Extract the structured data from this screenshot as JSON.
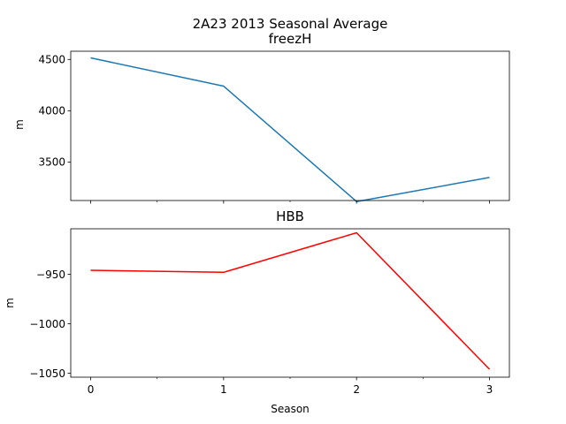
{
  "figure": {
    "title": "2A23 2013 Seasonal Average",
    "background": "#ffffff"
  },
  "chart_data": [
    {
      "type": "line",
      "title": "freezH",
      "xlabel": "",
      "ylabel": "m",
      "x": [
        0,
        1,
        2,
        3
      ],
      "xlim": [
        -0.15,
        3.15
      ],
      "ylim": [
        3125,
        4580
      ],
      "yticks": [
        3500,
        4000,
        4500
      ],
      "xticks": [
        0,
        1,
        2,
        3
      ],
      "show_xticklabels": false,
      "minor_xticks": [
        0.5,
        1.5,
        2.5
      ],
      "grid": false,
      "series": [
        {
          "values": [
            4515,
            4240,
            3115,
            3350
          ],
          "color": "#1f77b4"
        }
      ]
    },
    {
      "type": "line",
      "title": "HBB",
      "xlabel": "Season",
      "ylabel": "m",
      "x": [
        0,
        1,
        2,
        3
      ],
      "xlim": [
        -0.15,
        3.15
      ],
      "ylim": [
        -1054,
        -904
      ],
      "yticks": [
        -1050,
        -1000,
        -950
      ],
      "xticks": [
        0,
        1,
        2,
        3
      ],
      "show_xticklabels": true,
      "minor_xticks": [
        0.5,
        1.5,
        2.5
      ],
      "grid": false,
      "series": [
        {
          "values": [
            -946,
            -948,
            -908,
            -1046
          ],
          "color": "#ff0000"
        }
      ]
    }
  ]
}
